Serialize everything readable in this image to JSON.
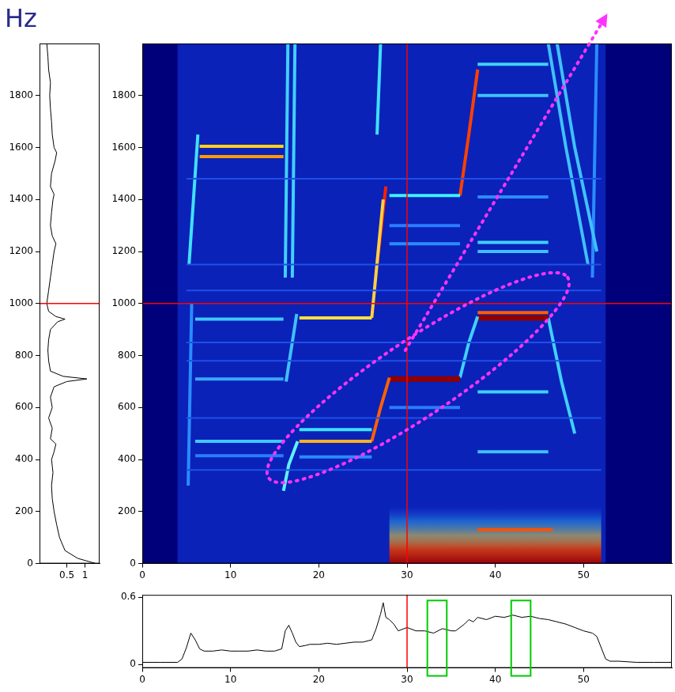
{
  "chart_data": [
    {
      "type": "line",
      "y_label": "Hz",
      "grid": false,
      "xlim": [
        -0.25,
        1.4
      ],
      "xticks": [
        0.5,
        1
      ],
      "ylim": [
        0,
        2000
      ],
      "yticks": [
        0,
        200,
        400,
        600,
        800,
        1000,
        1200,
        1400,
        1600,
        1800
      ],
      "cursor": {
        "y": 1000
      },
      "series": [
        {
          "color": "#000000",
          "x": [
            1.3,
            0.8,
            0.45,
            0.3,
            0.22,
            0.15,
            0.1,
            0.08,
            0.12,
            0.08,
            0.15,
            0.2,
            0.05,
            0.1,
            0.0,
            0.1,
            0.05,
            0.15,
            0.5,
            1.05,
            0.4,
            0.05,
            0.0,
            -0.02,
            0.0,
            0.05,
            0.25,
            0.45,
            0.2,
            0.0,
            -0.05,
            0.0,
            0.05,
            0.1,
            0.15,
            0.2,
            0.1,
            0.05,
            0.08,
            0.12,
            0.15,
            0.05,
            0.08,
            0.18,
            0.22,
            0.15,
            0.1,
            0.08,
            0.05,
            0.03,
            0.05,
            0.0,
            -0.02,
            -0.05
          ],
          "y": [
            0,
            20,
            50,
            100,
            150,
            200,
            250,
            300,
            350,
            400,
            430,
            460,
            480,
            520,
            560,
            600,
            640,
            680,
            700,
            710,
            720,
            740,
            780,
            820,
            860,
            900,
            930,
            940,
            950,
            970,
            1000,
            1050,
            1100,
            1150,
            1200,
            1230,
            1260,
            1300,
            1350,
            1400,
            1420,
            1450,
            1500,
            1550,
            1580,
            1600,
            1650,
            1700,
            1750,
            1800,
            1850,
            1900,
            1950,
            2000
          ]
        }
      ]
    },
    {
      "type": "spectrogram",
      "grid": false,
      "xlim": [
        0,
        60
      ],
      "xticks": [
        0,
        10,
        20,
        30,
        40,
        50
      ],
      "ylim": [
        0,
        2000
      ],
      "yticks": [
        0,
        200,
        400,
        600,
        800,
        1000,
        1200,
        1400,
        1600,
        1800
      ],
      "cursor": {
        "x": 30,
        "y": 1000
      },
      "active_span": [
        4,
        52.5
      ],
      "low_band": {
        "x": [
          28,
          52
        ],
        "y": [
          0,
          220
        ]
      },
      "ellipse": {
        "from": [
          14.3,
          330
        ],
        "to": [
          48.2,
          1100
        ]
      },
      "arrow": {
        "from": [
          29.8,
          820
        ],
        "to": [
          52.7,
          2115
        ]
      },
      "series": [
        {
          "x": [
            5,
            52
          ],
          "y": [
            1480,
            1480
          ],
          "color": "#1e50e8"
        },
        {
          "x": [
            5,
            52
          ],
          "y": [
            1150,
            1150
          ],
          "color": "#1e50e8"
        },
        {
          "x": [
            5,
            52
          ],
          "y": [
            1050,
            1050
          ],
          "color": "#1e50e8"
        },
        {
          "x": [
            5,
            52
          ],
          "y": [
            850,
            850
          ],
          "color": "#1e50e8"
        },
        {
          "x": [
            5,
            52
          ],
          "y": [
            780,
            780
          ],
          "color": "#1e50e8"
        },
        {
          "x": [
            5,
            52
          ],
          "y": [
            560,
            560
          ],
          "color": "#1e50e8"
        },
        {
          "x": [
            5,
            52
          ],
          "y": [
            360,
            360
          ],
          "color": "#1e50e8"
        },
        {
          "x": [
            6.5,
            16
          ],
          "y": [
            1605,
            1605
          ],
          "color": "#ffd020"
        },
        {
          "x": [
            6.5,
            16
          ],
          "y": [
            1565,
            1565
          ],
          "color": "#ff9a00"
        },
        {
          "x": [
            6,
            16
          ],
          "y": [
            940,
            940
          ],
          "color": "#40c8ff"
        },
        {
          "x": [
            6,
            16
          ],
          "y": [
            710,
            710
          ],
          "color": "#3aa8ff"
        },
        {
          "x": [
            6,
            16
          ],
          "y": [
            470,
            470
          ],
          "color": "#40c8ff"
        },
        {
          "x": [
            6,
            16
          ],
          "y": [
            415,
            415
          ],
          "color": "#2a7cff"
        },
        {
          "x": [
            5.3,
            5.8,
            6.3
          ],
          "y": [
            1150,
            1400,
            1650
          ],
          "color": "#40e0ff"
        },
        {
          "x": [
            5.2,
            5.6
          ],
          "y": [
            300,
            1000
          ],
          "color": "#2a8cff"
        },
        {
          "x": [
            16,
            16.6,
            17.6
          ],
          "y": [
            280,
            380,
            470
          ],
          "color": "#60f0ff"
        },
        {
          "x": [
            16.3,
            17.5
          ],
          "y": [
            700,
            960
          ],
          "color": "#40c0ff"
        },
        {
          "x": [
            16.2,
            16.5
          ],
          "y": [
            1100,
            2000
          ],
          "color": "#40d0ff"
        },
        {
          "x": [
            17,
            17.3
          ],
          "y": [
            1100,
            2000
          ],
          "color": "#40d0ff"
        },
        {
          "x": [
            17.8,
            26
          ],
          "y": [
            945,
            945
          ],
          "color": "#ffe040"
        },
        {
          "x": [
            17.8,
            26
          ],
          "y": [
            515,
            515
          ],
          "color": "#40e0ff"
        },
        {
          "x": [
            17.8,
            26
          ],
          "y": [
            470,
            470
          ],
          "color": "#ffb020"
        },
        {
          "x": [
            17.8,
            26
          ],
          "y": [
            410,
            410
          ],
          "color": "#2a8cff"
        },
        {
          "x": [
            26,
            27,
            28
          ],
          "y": [
            470,
            600,
            715
          ],
          "color": "#ff6000"
        },
        {
          "x": [
            26,
            27.3
          ],
          "y": [
            945,
            1400
          ],
          "color": "#ffd040"
        },
        {
          "x": [
            26.6,
            27.6
          ],
          "y": [
            1150,
            1450
          ],
          "color": "#ff2000"
        },
        {
          "x": [
            26.6,
            27
          ],
          "y": [
            1650,
            2000
          ],
          "color": "#40e0ff"
        },
        {
          "x": [
            28,
            36
          ],
          "y": [
            710,
            710
          ],
          "color": "#900000"
        },
        {
          "x": [
            28,
            36
          ],
          "y": [
            1415,
            1415
          ],
          "color": "#40f0ff"
        },
        {
          "x": [
            28,
            36
          ],
          "y": [
            1300,
            1300
          ],
          "color": "#2a7cff"
        },
        {
          "x": [
            28,
            36
          ],
          "y": [
            1230,
            1230
          ],
          "color": "#2a8cff"
        },
        {
          "x": [
            28,
            36
          ],
          "y": [
            600,
            600
          ],
          "color": "#2a7cff"
        },
        {
          "x": [
            36,
            37,
            38
          ],
          "y": [
            715,
            850,
            950
          ],
          "color": "#40d0ff"
        },
        {
          "x": [
            36,
            37,
            38
          ],
          "y": [
            1415,
            1650,
            1900
          ],
          "color": "#ff4000"
        },
        {
          "x": [
            38,
            46
          ],
          "y": [
            965,
            965
          ],
          "color": "#ff6000"
        },
        {
          "x": [
            38,
            46
          ],
          "y": [
            945,
            945
          ],
          "color": "#900000"
        },
        {
          "x": [
            38,
            46
          ],
          "y": [
            1920,
            1920
          ],
          "color": "#40d0ff"
        },
        {
          "x": [
            38,
            46
          ],
          "y": [
            1800,
            1800
          ],
          "color": "#40c0ff"
        },
        {
          "x": [
            38,
            46
          ],
          "y": [
            1410,
            1410
          ],
          "color": "#2a8cff"
        },
        {
          "x": [
            38,
            46
          ],
          "y": [
            1235,
            1235
          ],
          "color": "#40d0ff"
        },
        {
          "x": [
            38,
            46
          ],
          "y": [
            1200,
            1200
          ],
          "color": "#40c0ff"
        },
        {
          "x": [
            38,
            46
          ],
          "y": [
            660,
            660
          ],
          "color": "#40d0ff"
        },
        {
          "x": [
            38,
            46
          ],
          "y": [
            430,
            430
          ],
          "color": "#40c0ff"
        },
        {
          "x": [
            38,
            46.5
          ],
          "y": [
            130,
            130
          ],
          "color": "#ff5000"
        },
        {
          "x": [
            46,
            47.5,
            49
          ],
          "y": [
            945,
            700,
            500
          ],
          "color": "#40d0ff"
        },
        {
          "x": [
            46,
            48,
            50.5
          ],
          "y": [
            2000,
            1600,
            1150
          ],
          "color": "#40c0ff"
        },
        {
          "x": [
            47,
            49,
            51.5
          ],
          "y": [
            2000,
            1600,
            1200
          ],
          "color": "#40c0ff"
        },
        {
          "x": [
            51,
            51.5
          ],
          "y": [
            1100,
            2000
          ],
          "color": "#2a8cff"
        }
      ]
    },
    {
      "type": "line",
      "grid": false,
      "xlim": [
        0,
        60
      ],
      "xticks": [
        0,
        10,
        20,
        30,
        40,
        50
      ],
      "ylim": [
        -0.03,
        0.62
      ],
      "yticks": [
        0,
        0.6
      ],
      "cursor": {
        "x": 30
      },
      "highlights": [
        {
          "x": [
            32.3,
            34.5
          ],
          "top": 0.57
        },
        {
          "x": [
            41.8,
            44
          ],
          "top": 0.57
        }
      ],
      "series": [
        {
          "color": "#000000",
          "x": [
            0,
            2,
            4,
            4.5,
            5,
            5.5,
            6,
            6.5,
            7,
            8,
            9,
            10,
            11,
            12,
            13,
            14,
            15,
            15.8,
            16.2,
            16.6,
            17,
            17.4,
            17.8,
            18.5,
            19,
            20,
            21,
            22,
            23,
            24,
            25,
            26,
            26.5,
            27,
            27.3,
            27.6,
            28,
            28.5,
            29,
            30,
            31,
            32,
            33,
            34,
            35,
            35.5,
            36,
            36.5,
            37,
            37.5,
            38,
            39,
            40,
            41,
            42,
            43,
            44,
            45,
            46,
            47,
            48,
            49,
            50,
            51,
            51.5,
            52,
            52.5,
            53,
            54,
            56,
            58,
            60
          ],
          "y": [
            0.02,
            0.02,
            0.02,
            0.05,
            0.15,
            0.28,
            0.22,
            0.14,
            0.12,
            0.12,
            0.13,
            0.12,
            0.12,
            0.12,
            0.13,
            0.12,
            0.12,
            0.14,
            0.3,
            0.35,
            0.28,
            0.2,
            0.16,
            0.17,
            0.18,
            0.18,
            0.19,
            0.18,
            0.19,
            0.2,
            0.2,
            0.22,
            0.32,
            0.45,
            0.55,
            0.42,
            0.4,
            0.36,
            0.3,
            0.33,
            0.3,
            0.3,
            0.28,
            0.32,
            0.3,
            0.3,
            0.33,
            0.36,
            0.4,
            0.38,
            0.42,
            0.4,
            0.43,
            0.42,
            0.44,
            0.42,
            0.43,
            0.41,
            0.4,
            0.38,
            0.36,
            0.33,
            0.3,
            0.28,
            0.25,
            0.15,
            0.05,
            0.03,
            0.03,
            0.02,
            0.02,
            0.02
          ]
        }
      ]
    }
  ]
}
